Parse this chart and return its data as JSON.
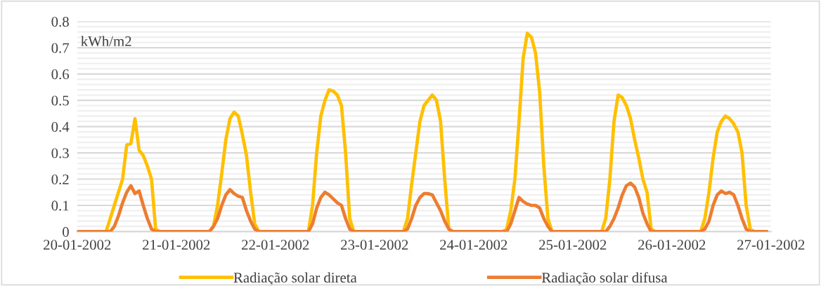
{
  "chart_data": {
    "type": "line",
    "annotations": [
      "kWh/m2"
    ],
    "x": [
      "2002-01-20T00:00",
      "2002-01-20T06:00",
      "2002-01-20T07:00",
      "2002-01-20T08:00",
      "2002-01-20T09:00",
      "2002-01-20T10:00",
      "2002-01-20T11:00",
      "2002-01-20T12:00",
      "2002-01-20T13:00",
      "2002-01-20T14:00",
      "2002-01-20T15:00",
      "2002-01-20T16:00",
      "2002-01-20T17:00",
      "2002-01-20T18:00",
      "2002-01-20T19:00",
      "2002-01-20T20:00",
      "2002-01-20T21:00",
      "2002-01-21T00:00",
      "2002-01-21T06:00",
      "2002-01-21T07:00",
      "2002-01-21T08:00",
      "2002-01-21T09:00",
      "2002-01-21T10:00",
      "2002-01-21T11:00",
      "2002-01-21T12:00",
      "2002-01-21T13:00",
      "2002-01-21T14:00",
      "2002-01-21T15:00",
      "2002-01-21T16:00",
      "2002-01-21T17:00",
      "2002-01-21T18:00",
      "2002-01-21T19:00",
      "2002-01-21T20:00",
      "2002-01-21T21:00",
      "2002-01-22T00:00",
      "2002-01-22T06:00",
      "2002-01-22T07:00",
      "2002-01-22T08:00",
      "2002-01-22T09:00",
      "2002-01-22T10:00",
      "2002-01-22T11:00",
      "2002-01-22T12:00",
      "2002-01-22T13:00",
      "2002-01-22T14:00",
      "2002-01-22T15:00",
      "2002-01-22T16:00",
      "2002-01-22T17:00",
      "2002-01-22T18:00",
      "2002-01-22T19:00",
      "2002-01-22T20:00",
      "2002-01-22T21:00",
      "2002-01-23T00:00",
      "2002-01-23T06:00",
      "2002-01-23T07:00",
      "2002-01-23T08:00",
      "2002-01-23T09:00",
      "2002-01-23T10:00",
      "2002-01-23T11:00",
      "2002-01-23T12:00",
      "2002-01-23T13:00",
      "2002-01-23T14:00",
      "2002-01-23T15:00",
      "2002-01-23T16:00",
      "2002-01-23T17:00",
      "2002-01-23T18:00",
      "2002-01-23T19:00",
      "2002-01-23T20:00",
      "2002-01-23T21:00",
      "2002-01-24T00:00",
      "2002-01-24T06:00",
      "2002-01-24T07:00",
      "2002-01-24T08:00",
      "2002-01-24T09:00",
      "2002-01-24T10:00",
      "2002-01-24T11:00",
      "2002-01-24T12:00",
      "2002-01-24T13:00",
      "2002-01-24T14:00",
      "2002-01-24T15:00",
      "2002-01-24T16:00",
      "2002-01-24T17:00",
      "2002-01-24T18:00",
      "2002-01-24T19:00",
      "2002-01-24T20:00",
      "2002-01-24T21:00",
      "2002-01-25T00:00",
      "2002-01-25T06:00",
      "2002-01-25T07:00",
      "2002-01-25T08:00",
      "2002-01-25T09:00",
      "2002-01-25T10:00",
      "2002-01-25T11:00",
      "2002-01-25T12:00",
      "2002-01-25T13:00",
      "2002-01-25T14:00",
      "2002-01-25T15:00",
      "2002-01-25T16:00",
      "2002-01-25T17:00",
      "2002-01-25T18:00",
      "2002-01-25T19:00",
      "2002-01-25T20:00",
      "2002-01-25T21:00",
      "2002-01-26T00:00",
      "2002-01-26T06:00",
      "2002-01-26T07:00",
      "2002-01-26T08:00",
      "2002-01-26T09:00",
      "2002-01-26T10:00",
      "2002-01-26T11:00",
      "2002-01-26T12:00",
      "2002-01-26T13:00",
      "2002-01-26T14:00",
      "2002-01-26T15:00",
      "2002-01-26T16:00",
      "2002-01-26T17:00",
      "2002-01-26T18:00",
      "2002-01-26T19:00",
      "2002-01-26T20:00",
      "2002-01-26T21:00",
      "2002-01-26T23:00"
    ],
    "series": [
      {
        "name": "Radiação solar direta",
        "color": "#ffc000",
        "values": [
          0,
          0,
          0,
          0.05,
          0.1,
          0.15,
          0.2,
          0.33,
          0.335,
          0.43,
          0.31,
          0.29,
          0.25,
          0.2,
          0.01,
          0,
          0,
          0,
          0,
          0,
          0,
          0.02,
          0.1,
          0.22,
          0.35,
          0.43,
          0.455,
          0.44,
          0.37,
          0.29,
          0.15,
          0.03,
          0,
          0,
          0,
          0,
          0,
          0,
          0.1,
          0.3,
          0.44,
          0.5,
          0.54,
          0.535,
          0.52,
          0.48,
          0.3,
          0.05,
          0,
          0,
          0,
          0,
          0,
          0,
          0.05,
          0.18,
          0.3,
          0.42,
          0.48,
          0.5,
          0.52,
          0.5,
          0.42,
          0.2,
          0.01,
          0,
          0,
          0,
          0,
          0,
          0,
          0.01,
          0.08,
          0.2,
          0.42,
          0.66,
          0.755,
          0.74,
          0.68,
          0.53,
          0.25,
          0.05,
          0,
          0,
          0,
          0,
          0,
          0,
          0.05,
          0.2,
          0.42,
          0.52,
          0.51,
          0.48,
          0.43,
          0.35,
          0.28,
          0.2,
          0.15,
          0.01,
          0,
          0,
          0,
          0,
          0,
          0.05,
          0.15,
          0.28,
          0.38,
          0.42,
          0.44,
          0.43,
          0.41,
          0.38,
          0.3,
          0.1,
          0.01,
          0,
          0,
          0
        ]
      },
      {
        "name": "Radiação solar difusa",
        "color": "#ed7d31",
        "values": [
          0,
          0,
          0,
          0,
          0.02,
          0.06,
          0.11,
          0.15,
          0.175,
          0.145,
          0.155,
          0.1,
          0.05,
          0.01,
          0,
          0,
          0,
          0,
          0,
          0,
          0,
          0.02,
          0.05,
          0.1,
          0.14,
          0.16,
          0.145,
          0.135,
          0.13,
          0.08,
          0.04,
          0.01,
          0,
          0,
          0,
          0,
          0,
          0,
          0.03,
          0.09,
          0.13,
          0.15,
          0.14,
          0.125,
          0.11,
          0.1,
          0.05,
          0.01,
          0,
          0,
          0,
          0,
          0,
          0,
          0.01,
          0.05,
          0.1,
          0.13,
          0.145,
          0.145,
          0.14,
          0.11,
          0.08,
          0.04,
          0.01,
          0,
          0,
          0,
          0,
          0,
          0,
          0,
          0.03,
          0.08,
          0.13,
          0.115,
          0.105,
          0.1,
          0.1,
          0.09,
          0.05,
          0.02,
          0,
          0,
          0,
          0,
          0,
          0,
          0,
          0.02,
          0.05,
          0.09,
          0.14,
          0.175,
          0.185,
          0.17,
          0.13,
          0.07,
          0.03,
          0,
          0,
          0,
          0,
          0,
          0,
          0.01,
          0.04,
          0.1,
          0.14,
          0.155,
          0.145,
          0.15,
          0.14,
          0.1,
          0.05,
          0.01,
          0,
          0,
          0,
          0
        ]
      }
    ],
    "xlim": [
      "2002-01-20",
      "2002-01-27"
    ],
    "xticks": [
      {
        "value": "2002-01-20",
        "label": "20-01-2002"
      },
      {
        "value": "2002-01-21",
        "label": "21-01-2002"
      },
      {
        "value": "2002-01-22",
        "label": "22-01-2002"
      },
      {
        "value": "2002-01-23",
        "label": "23-01-2002"
      },
      {
        "value": "2002-01-24",
        "label": "24-01-2002"
      },
      {
        "value": "2002-01-25",
        "label": "25-01-2002"
      },
      {
        "value": "2002-01-26",
        "label": "26-01-2002"
      },
      {
        "value": "2002-01-27",
        "label": "27-01-2002"
      }
    ],
    "ylim": [
      0,
      0.8
    ],
    "yticks": [
      0,
      0.1,
      0.2,
      0.3,
      0.4,
      0.5,
      0.6,
      0.7,
      0.8
    ],
    "grid": "y",
    "legend": "bottom",
    "line_style": "solid"
  }
}
